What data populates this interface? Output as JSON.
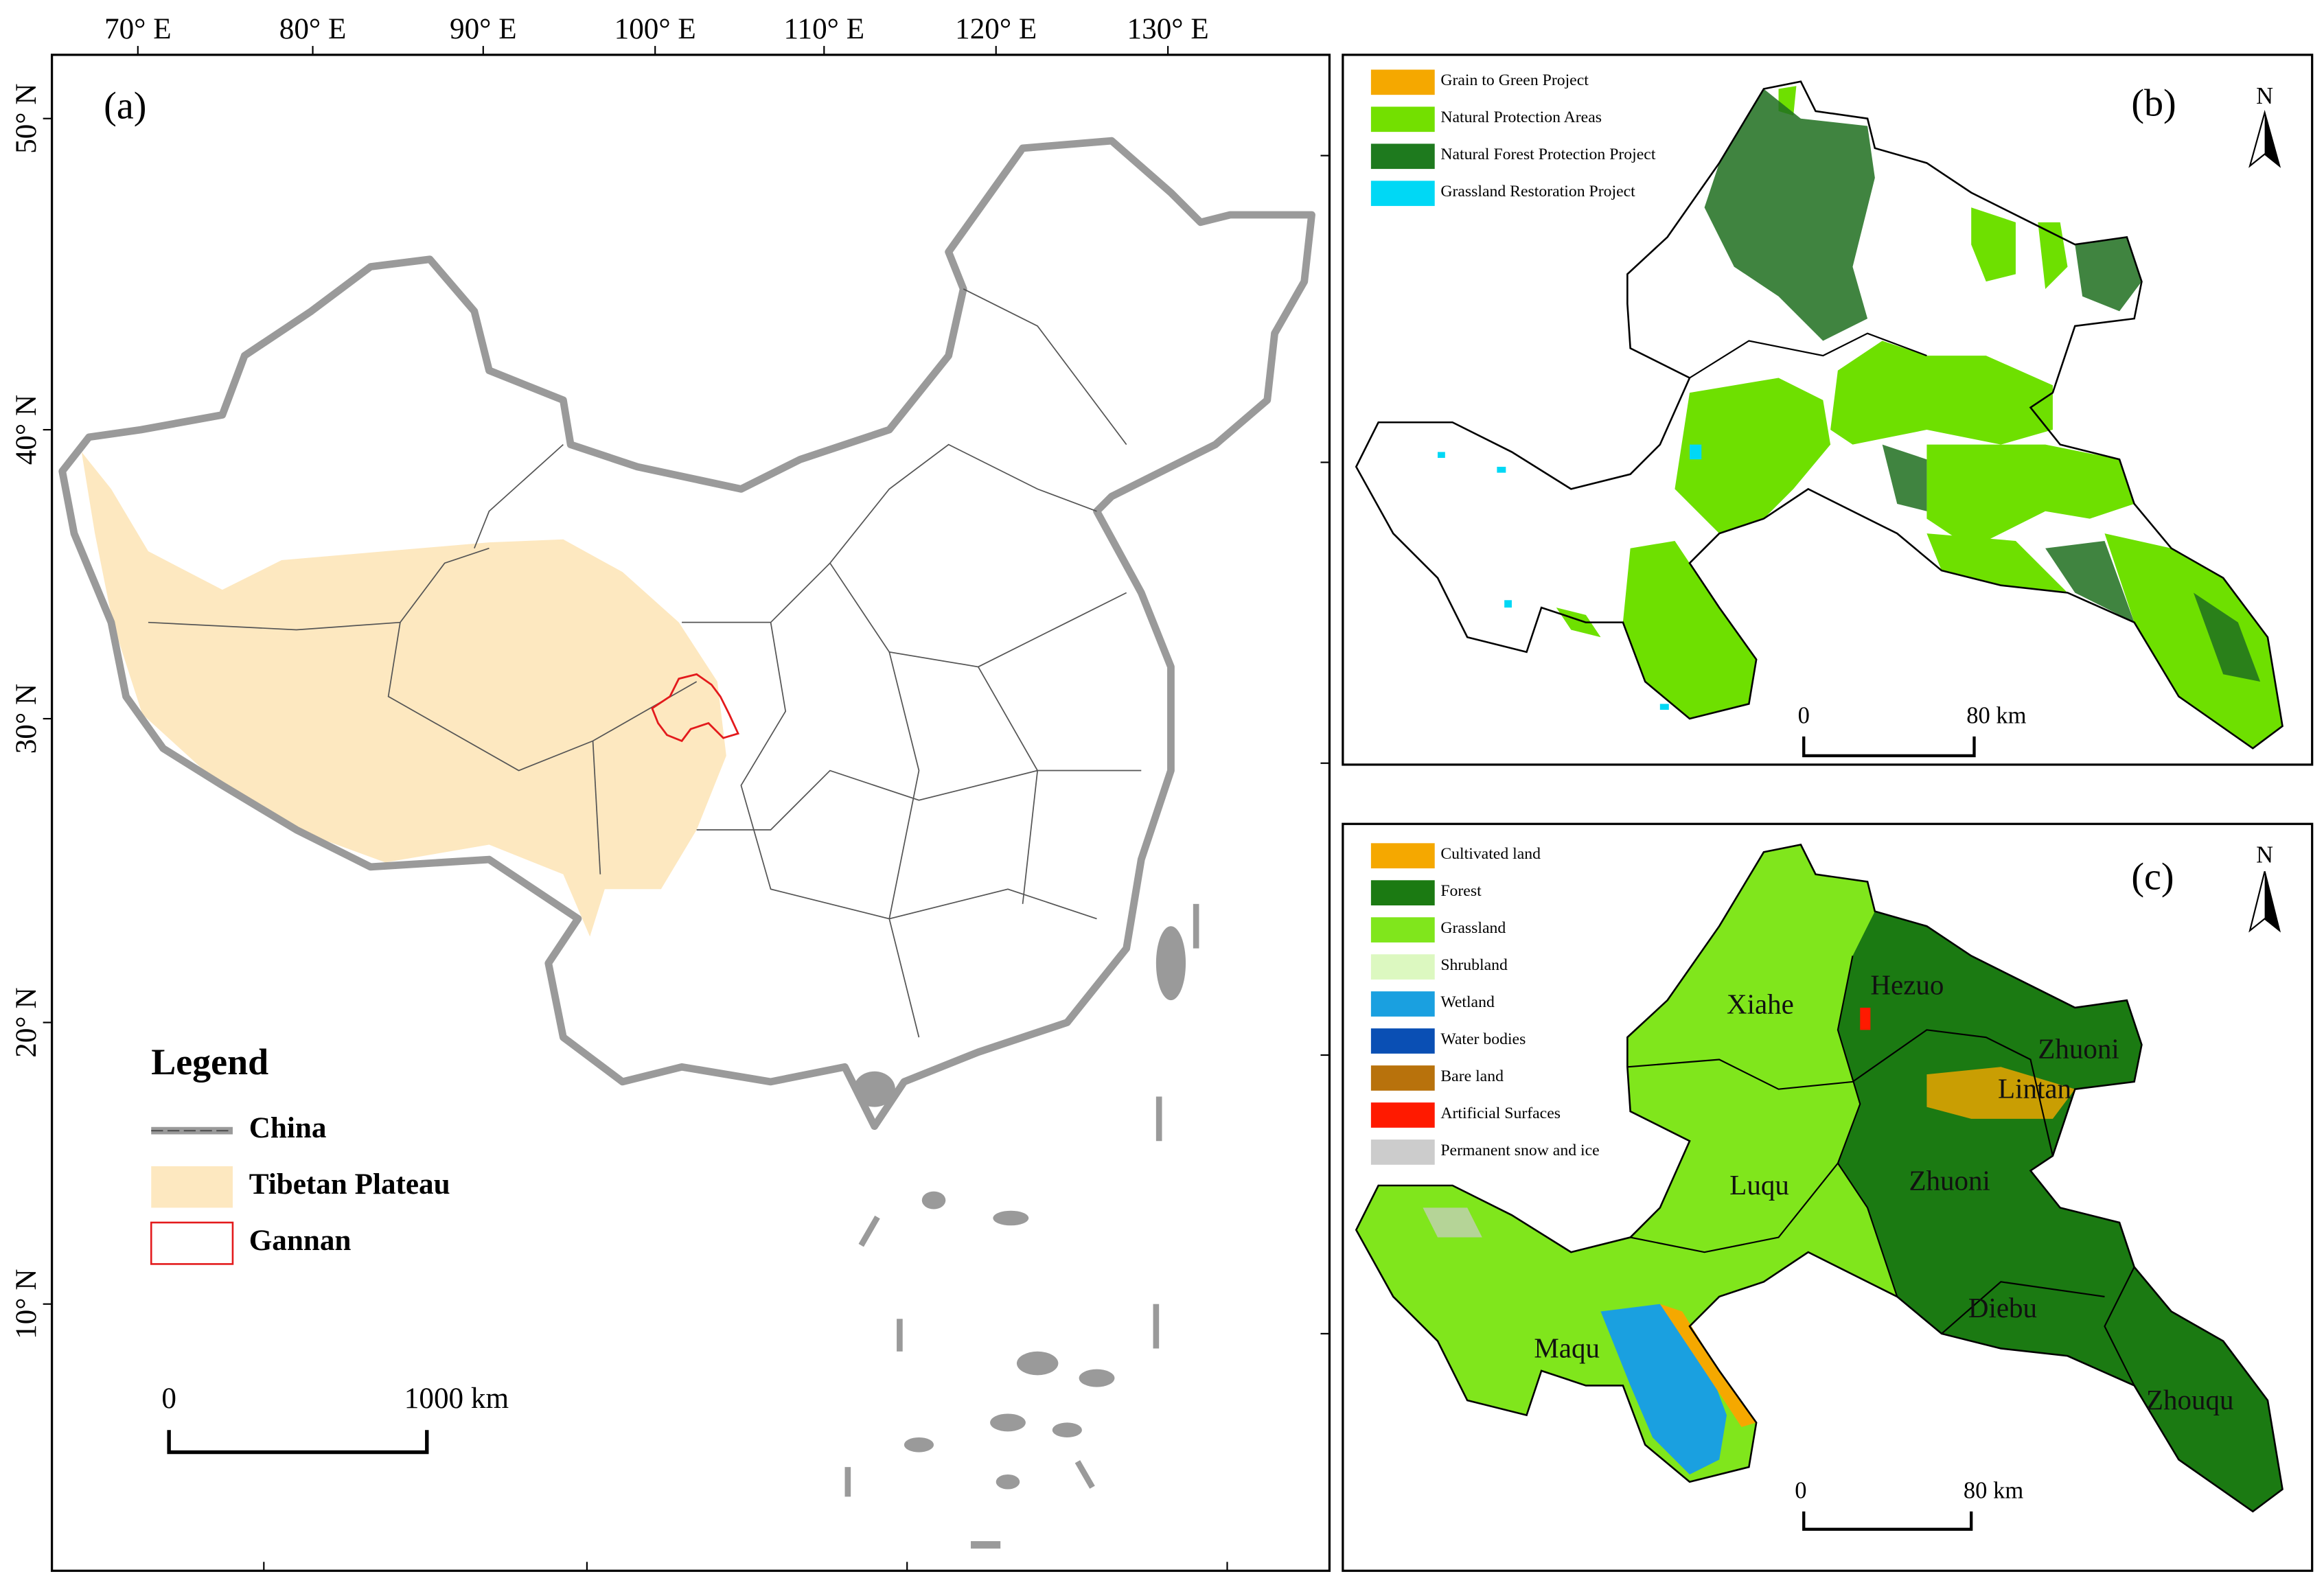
{
  "panel_a": {
    "label": "(a)",
    "longitudes": [
      "70° E",
      "80° E",
      "90° E",
      "100° E",
      "110° E",
      "120° E",
      "130° E"
    ],
    "latitudes": [
      "50° N",
      "40° N",
      "30° N",
      "20° N",
      "10° N"
    ],
    "legend": {
      "title": "Legend",
      "items": [
        {
          "label": "China",
          "color": "#9a9a9a"
        },
        {
          "label": "Tibetan Plateau",
          "color": "#fde8c0"
        },
        {
          "label": "Gannan",
          "color": "#e31a1c"
        }
      ]
    },
    "scale_bar": {
      "start": "0",
      "end": "1000 km"
    }
  },
  "panel_b": {
    "label": "(b)",
    "north": "N",
    "legend": [
      {
        "label": "Grain to Green Project",
        "color": "#f5a800"
      },
      {
        "label": "Natural Protection Areas",
        "color": "#73e000"
      },
      {
        "label": "Natural Forest Protection Project",
        "color": "#1e7a1e"
      },
      {
        "label": "Grassland Restoration Project",
        "color": "#00d8f5"
      }
    ],
    "scale_bar": {
      "start": "0",
      "end": "80 km"
    }
  },
  "panel_c": {
    "label": "(c)",
    "north": "N",
    "legend": [
      {
        "label": "Cultivated land",
        "color": "#f5a800"
      },
      {
        "label": "Forest",
        "color": "#1b7a12"
      },
      {
        "label": "Grassland",
        "color": "#80e61c"
      },
      {
        "label": "Shrubland",
        "color": "#dcf8c0"
      },
      {
        "label": "Wetland",
        "color": "#1aa0e0"
      },
      {
        "label": "Water bodies",
        "color": "#0a4fb4"
      },
      {
        "label": "Bare land",
        "color": "#b8720c"
      },
      {
        "label": "Artificial Surfaces",
        "color": "#ff1a00"
      },
      {
        "label": "Permanent snow and ice",
        "color": "#cccccc"
      }
    ],
    "places": [
      "Hezuo",
      "Xiahe",
      "Zhuoni",
      "Lintan",
      "Zhuoni",
      "Luqu",
      "Diebu",
      "Maqu",
      "Zhouqu"
    ],
    "scale_bar": {
      "start": "0",
      "end": "80 km"
    }
  }
}
